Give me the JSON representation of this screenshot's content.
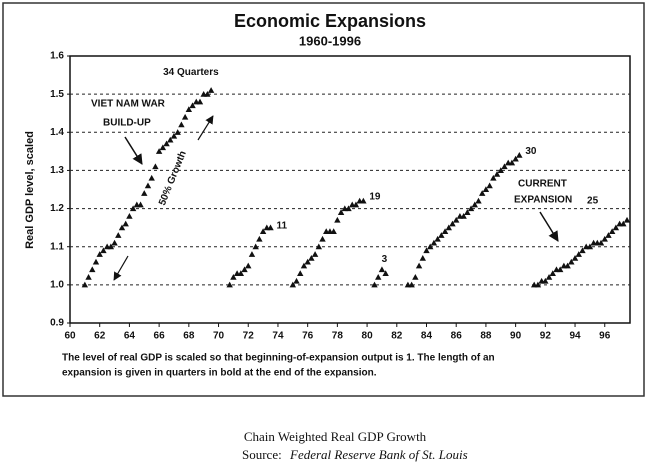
{
  "chart_data": {
    "type": "scatter",
    "title": "Economic Expansions",
    "subtitle": "1960-1996",
    "y_label": "Real GDP level, scaled",
    "xlim": [
      60,
      97.7
    ],
    "ylim": [
      0.9,
      1.6
    ],
    "xticks": [
      60,
      62,
      64,
      66,
      68,
      70,
      72,
      74,
      76,
      78,
      80,
      82,
      84,
      86,
      88,
      90,
      92,
      94,
      96
    ],
    "yticks": [
      0.9,
      {
        "value": 1,
        "label": "1.0"
      },
      1.1,
      1.2,
      1.3,
      1.4,
      1.5,
      1.6
    ],
    "grid": true,
    "color": "#111111",
    "series": [
      {
        "name": "34 Quarters",
        "x": [
          61,
          61.25,
          61.5,
          61.75,
          62,
          62.25,
          62.5,
          62.75,
          63,
          63.25,
          63.5,
          63.75,
          64,
          64.25,
          64.5,
          64.75,
          65,
          65.25,
          65.5,
          65.75,
          66,
          66.25,
          66.5,
          66.75,
          67,
          67.25,
          67.5,
          67.75,
          68,
          68.25,
          68.5,
          68.75,
          69,
          69.25,
          69.5
        ],
        "values": [
          1.0,
          1.02,
          1.04,
          1.06,
          1.08,
          1.09,
          1.1,
          1.1,
          1.11,
          1.13,
          1.15,
          1.16,
          1.18,
          1.2,
          1.21,
          1.21,
          1.24,
          1.26,
          1.28,
          1.31,
          1.35,
          1.36,
          1.37,
          1.38,
          1.39,
          1.4,
          1.42,
          1.44,
          1.46,
          1.47,
          1.48,
          1.48,
          1.5,
          1.5,
          1.51
        ]
      },
      {
        "name": "11",
        "x": [
          70.75,
          71,
          71.25,
          71.5,
          71.75,
          72,
          72.25,
          72.5,
          72.75,
          73,
          73.25,
          73.5
        ],
        "values": [
          1.0,
          1.02,
          1.03,
          1.03,
          1.04,
          1.05,
          1.08,
          1.1,
          1.12,
          1.14,
          1.15,
          1.15
        ]
      },
      {
        "name": "19",
        "x": [
          75,
          75.25,
          75.5,
          75.75,
          76,
          76.25,
          76.5,
          76.75,
          77,
          77.25,
          77.5,
          77.75,
          78,
          78.25,
          78.5,
          78.75,
          79,
          79.25,
          79.5,
          79.75
        ],
        "values": [
          1.0,
          1.01,
          1.03,
          1.05,
          1.06,
          1.07,
          1.08,
          1.1,
          1.12,
          1.14,
          1.14,
          1.14,
          1.17,
          1.19,
          1.2,
          1.2,
          1.21,
          1.21,
          1.22,
          1.22
        ]
      },
      {
        "name": "3",
        "x": [
          80.5,
          80.75,
          81,
          81.25
        ],
        "values": [
          1.0,
          1.02,
          1.04,
          1.03
        ]
      },
      {
        "name": "30",
        "x": [
          82.75,
          83,
          83.25,
          83.5,
          83.75,
          84,
          84.25,
          84.5,
          84.75,
          85,
          85.25,
          85.5,
          85.75,
          86,
          86.25,
          86.5,
          86.75,
          87,
          87.25,
          87.5,
          87.75,
          88,
          88.25,
          88.5,
          88.75,
          89,
          89.25,
          89.5,
          89.75,
          90,
          90.25
        ],
        "values": [
          1.0,
          1.0,
          1.02,
          1.05,
          1.07,
          1.09,
          1.1,
          1.11,
          1.12,
          1.13,
          1.14,
          1.15,
          1.16,
          1.17,
          1.18,
          1.18,
          1.19,
          1.2,
          1.21,
          1.22,
          1.24,
          1.25,
          1.26,
          1.28,
          1.29,
          1.3,
          1.31,
          1.32,
          1.32,
          1.33,
          1.34
        ]
      },
      {
        "name": "25",
        "x": [
          91.25,
          91.5,
          91.75,
          92,
          92.25,
          92.5,
          92.75,
          93,
          93.25,
          93.5,
          93.75,
          94,
          94.25,
          94.5,
          94.75,
          95,
          95.25,
          95.5,
          95.75,
          96,
          96.25,
          96.5,
          96.75,
          97,
          97.25,
          97.5
        ],
        "values": [
          1.0,
          1.0,
          1.01,
          1.01,
          1.02,
          1.03,
          1.04,
          1.04,
          1.05,
          1.05,
          1.06,
          1.07,
          1.08,
          1.09,
          1.1,
          1.1,
          1.11,
          1.11,
          1.11,
          1.12,
          1.13,
          1.14,
          1.15,
          1.16,
          1.16,
          1.17
        ]
      }
    ],
    "annotations": [
      "VIET NAM WAR",
      "BUILD-UP",
      "50% Growth",
      "CURRENT",
      "EXPANSION"
    ],
    "note": [
      "The level of real GDP is scaled so that beginning-of-expansion output is 1.  The length of an",
      "expansion is given in quarters in bold at the end of the expansion."
    ]
  },
  "caption": {
    "line1": "Chain Weighted Real GDP Growth",
    "source_label": "Source:",
    "source": "Federal Reserve Bank of St. Louis"
  }
}
